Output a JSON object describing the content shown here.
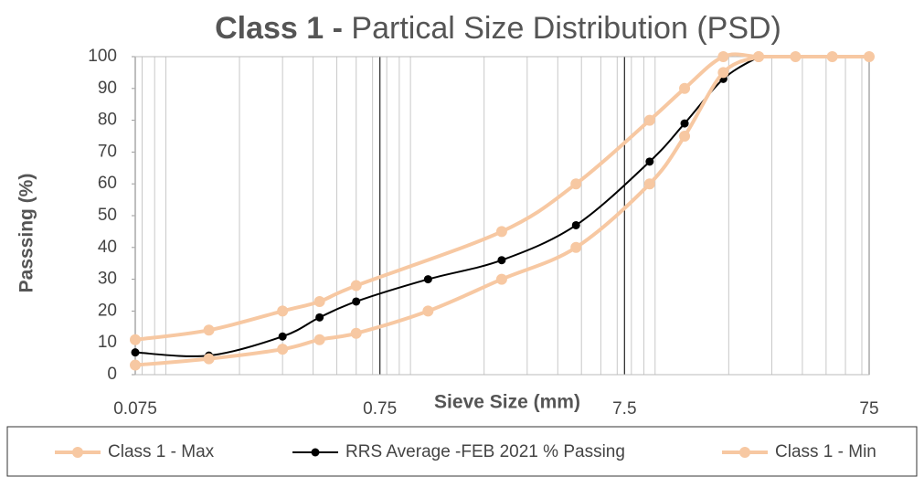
{
  "chart_data": {
    "type": "line",
    "title_bold": "Class 1 -",
    "title": "Partical Size Distribution (PSD)",
    "x_label": "Sieve Size (mm)",
    "y_label": "Passsing (%)",
    "xscale": "log",
    "xlim": [
      0.075,
      75
    ],
    "xticks": [
      0.075,
      0.75,
      7.5,
      75
    ],
    "ylim": [
      0,
      100
    ],
    "yticks": [
      0,
      10,
      20,
      30,
      40,
      50,
      60,
      70,
      80,
      90,
      100
    ],
    "grid": "x",
    "legend": "bottom",
    "series": [
      {
        "name": "Class 1 - Max",
        "color": "#f7c8a2",
        "x": [
          0.075,
          0.15,
          0.3,
          0.425,
          0.6,
          2.36,
          4.75,
          9.5,
          13.2,
          19,
          26.5,
          37.5,
          53,
          75
        ],
        "values": [
          11,
          14,
          20,
          23,
          28,
          45,
          60,
          80,
          90,
          100,
          100,
          100,
          100,
          100
        ]
      },
      {
        "name": "RRS Average -FEB 2021 % Passing",
        "color": "#000000",
        "x": [
          0.075,
          0.15,
          0.3,
          0.425,
          0.6,
          1.18,
          2.36,
          4.75,
          9.5,
          13.2,
          19,
          26.5
        ],
        "values": [
          7,
          6,
          12,
          18,
          23,
          30,
          36,
          47,
          67,
          79,
          93,
          100
        ]
      },
      {
        "name": "Class 1 - Min",
        "color": "#f7c8a2",
        "x": [
          0.075,
          0.15,
          0.3,
          0.425,
          0.6,
          1.18,
          2.36,
          4.75,
          9.5,
          13.2,
          19,
          26.5
        ],
        "values": [
          3,
          5,
          8,
          11,
          13,
          20,
          30,
          40,
          60,
          75,
          95,
          100
        ]
      }
    ]
  }
}
